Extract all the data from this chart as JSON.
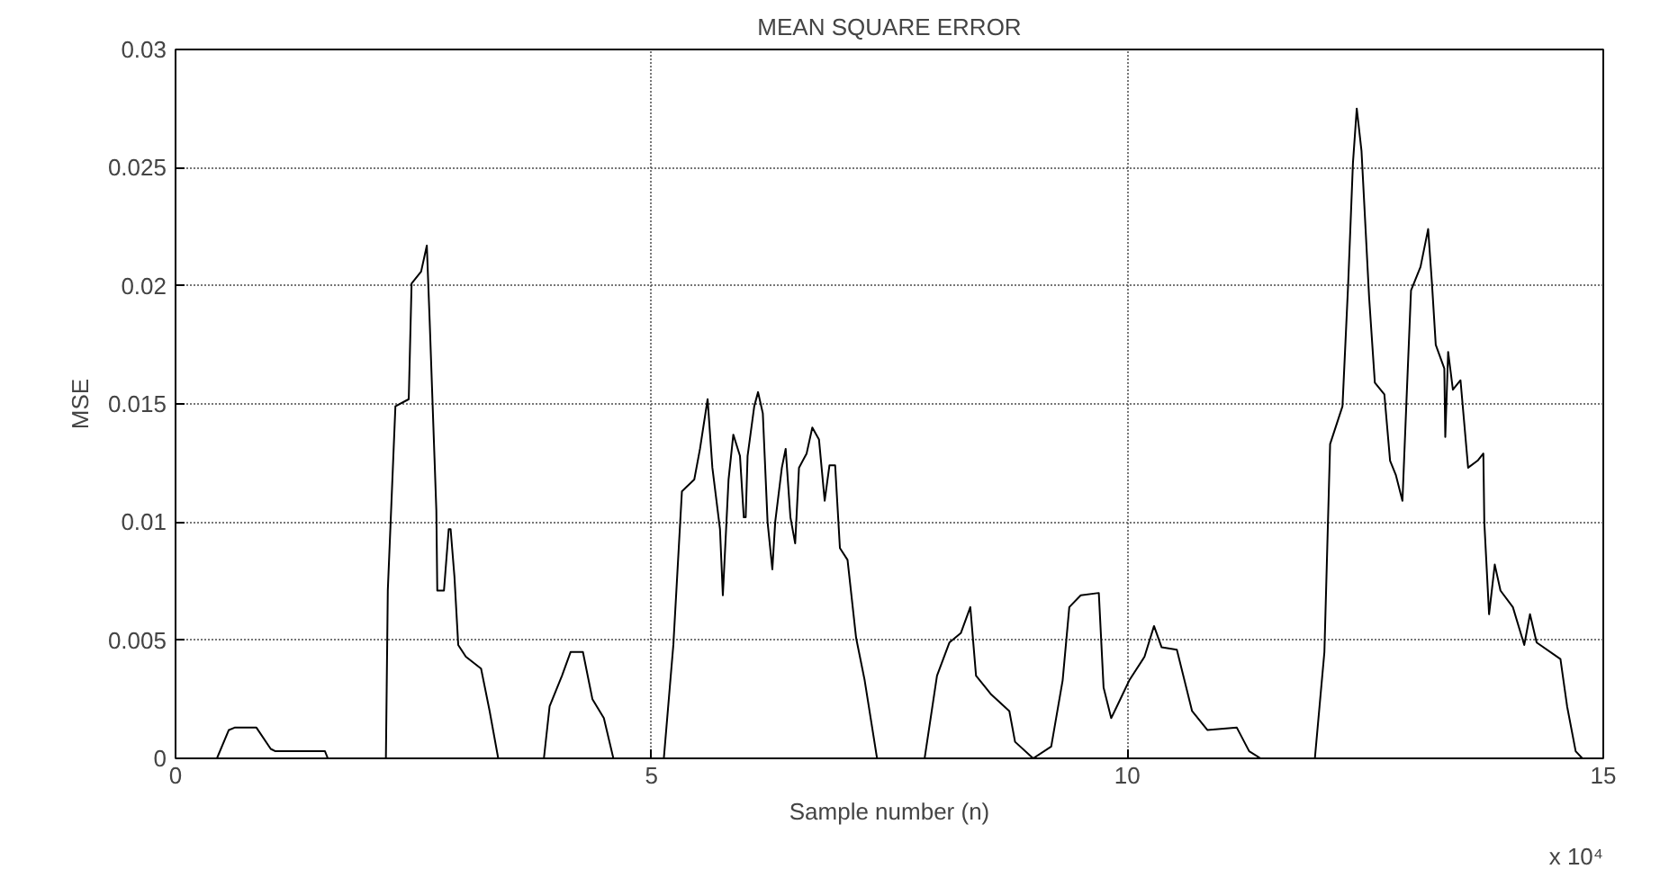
{
  "chart_data": {
    "type": "line",
    "title": "MEAN SQUARE ERROR",
    "xlabel": "Sample number (n)",
    "ylabel": "MSE",
    "annotations": [
      "x 10⁴"
    ],
    "xlim": [
      0,
      15
    ],
    "ylim": [
      0,
      0.03
    ],
    "xticks": [
      0,
      5,
      10,
      15
    ],
    "yticks": [
      0,
      0.005,
      0.01,
      0.015,
      0.02,
      0.025,
      0.03
    ],
    "grid": true,
    "series": [
      {
        "color": "#000000",
        "x": [
          0,
          0.435,
          0.56,
          0.62,
          0.85,
          1.0,
          1.05,
          1.57,
          1.6,
          2.21,
          2.23,
          2.31,
          2.45,
          2.48,
          2.58,
          2.64,
          2.67,
          2.74,
          2.75,
          2.82,
          2.87,
          2.89,
          2.93,
          2.97,
          3.05,
          3.21,
          3.3,
          3.39,
          3.87,
          3.93,
          4.06,
          4.15,
          4.28,
          4.38,
          4.5,
          4.6,
          5.13,
          5.23,
          5.32,
          5.45,
          5.51,
          5.59,
          5.64,
          5.72,
          5.75,
          5.81,
          5.86,
          5.93,
          5.97,
          5.99,
          6.01,
          6.08,
          6.12,
          6.17,
          6.22,
          6.27,
          6.3,
          6.37,
          6.41,
          6.46,
          6.51,
          6.55,
          6.63,
          6.69,
          6.76,
          6.82,
          6.87,
          6.93,
          6.98,
          7.06,
          7.15,
          7.24,
          7.37,
          7.87,
          8.0,
          8.13,
          8.25,
          8.35,
          8.41,
          8.57,
          8.76,
          8.82,
          9.01,
          9.2,
          9.32,
          9.39,
          9.51,
          9.7,
          9.75,
          9.83,
          9.89,
          10.02,
          10.18,
          10.28,
          10.36,
          10.52,
          10.68,
          10.84,
          11.15,
          11.28,
          11.4,
          11.97,
          12.07,
          12.13,
          12.26,
          12.32,
          12.37,
          12.41,
          12.46,
          12.54,
          12.6,
          12.7,
          12.76,
          12.82,
          12.89,
          12.93,
          12.98,
          13.08,
          13.16,
          13.2,
          13.24,
          13.33,
          13.34,
          13.37,
          13.42,
          13.5,
          13.58,
          13.68,
          13.74,
          13.75,
          13.8,
          13.86,
          13.92,
          14.05,
          14.17,
          14.23,
          14.3,
          14.55,
          14.62,
          14.71,
          14.78,
          14.9
        ],
        "values": [
          0,
          0,
          0.0012,
          0.0013,
          0.0013,
          0.0004,
          0.0003,
          0.0003,
          0,
          0,
          0.0071,
          0.0149,
          0.0152,
          0.0201,
          0.0206,
          0.0217,
          0.0185,
          0.0105,
          0.0071,
          0.0071,
          0.0097,
          0.0097,
          0.0077,
          0.0048,
          0.0043,
          0.0038,
          0.002,
          0,
          0,
          0.0022,
          0.0035,
          0.0045,
          0.0045,
          0.0025,
          0.0017,
          0,
          0,
          0.0048,
          0.0113,
          0.0118,
          0.0131,
          0.0152,
          0.0123,
          0.0097,
          0.0069,
          0.0118,
          0.0137,
          0.0128,
          0.0102,
          0.0102,
          0.0128,
          0.0149,
          0.0155,
          0.0146,
          0.01,
          0.008,
          0.01,
          0.0123,
          0.0131,
          0.0102,
          0.0091,
          0.0123,
          0.0129,
          0.014,
          0.0135,
          0.0109,
          0.0124,
          0.0124,
          0.0089,
          0.0084,
          0.0051,
          0.0033,
          0,
          0,
          0.0035,
          0.0049,
          0.0053,
          0.0064,
          0.0035,
          0.0027,
          0.002,
          0.0007,
          0,
          0.0005,
          0.0033,
          0.0064,
          0.0069,
          0.007,
          0.003,
          0.0017,
          0.0022,
          0.0033,
          0.0043,
          0.0056,
          0.0047,
          0.0046,
          0.002,
          0.0012,
          0.0013,
          0.0003,
          0,
          0,
          0.0045,
          0.0133,
          0.0149,
          0.0201,
          0.0252,
          0.0275,
          0.0257,
          0.0195,
          0.0159,
          0.0154,
          0.0126,
          0.012,
          0.0109,
          0.0149,
          0.0198,
          0.0208,
          0.0224,
          0.0201,
          0.0175,
          0.0165,
          0.0136,
          0.0172,
          0.0156,
          0.016,
          0.0123,
          0.0126,
          0.0129,
          0.01,
          0.0061,
          0.0082,
          0.0071,
          0.0064,
          0.0048,
          0.0061,
          0.0049,
          0.0042,
          0.0022,
          0.0003,
          0,
          0
        ]
      }
    ]
  }
}
